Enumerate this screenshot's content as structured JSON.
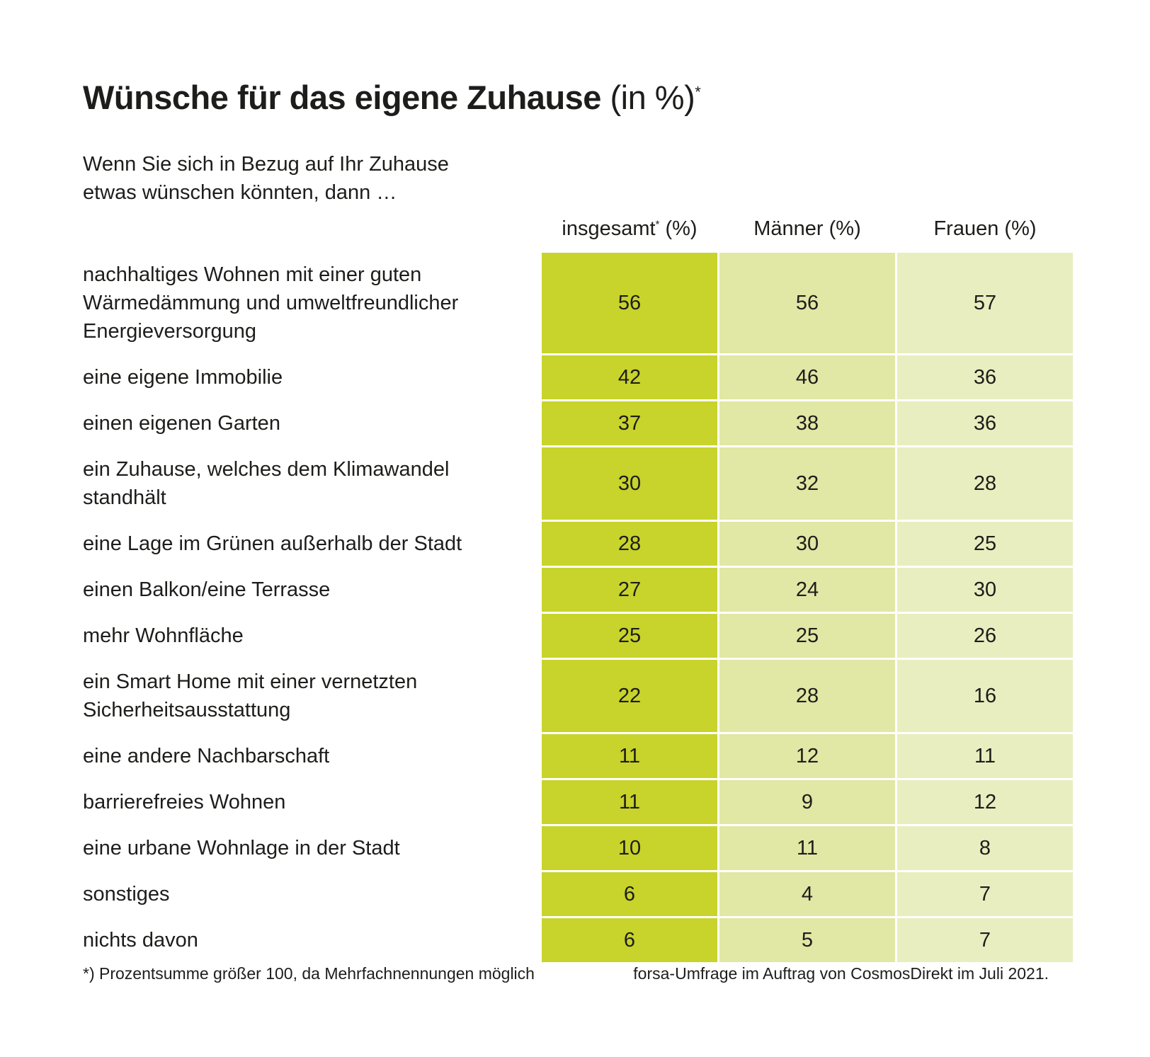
{
  "title": {
    "main": "Wünsche für das eigene Zuhause",
    "unit": "(in %)",
    "marker": "*"
  },
  "intro": {
    "line1": "Wenn Sie sich in Bezug auf Ihr Zuhause",
    "line2": "etwas wünschen könnten, dann …"
  },
  "chart_data": {
    "type": "table",
    "title": "Wünsche für das eigene Zuhause (in %)*",
    "columns": [
      {
        "label": "insgesamt",
        "marker": "*",
        "unit": "(%)"
      },
      {
        "label": "Männer",
        "marker": "",
        "unit": "(%)"
      },
      {
        "label": "Frauen",
        "marker": "",
        "unit": "(%)"
      }
    ],
    "rows": [
      {
        "label": [
          "nachhaltiges Wohnen mit einer guten",
          "Wärmedämmung und umweltfreundlicher",
          "Energieversorgung"
        ],
        "values": [
          56,
          56,
          57
        ]
      },
      {
        "label": [
          "eine eigene Immobilie"
        ],
        "values": [
          42,
          46,
          36
        ]
      },
      {
        "label": [
          "einen eigenen Garten"
        ],
        "values": [
          37,
          38,
          36
        ]
      },
      {
        "label": [
          "ein Zuhause, welches dem Klimawandel",
          "standhält"
        ],
        "values": [
          30,
          32,
          28
        ]
      },
      {
        "label": [
          "eine Lage im Grünen außerhalb der Stadt"
        ],
        "values": [
          28,
          30,
          25
        ]
      },
      {
        "label": [
          "einen Balkon/eine Terrasse"
        ],
        "values": [
          27,
          24,
          30
        ]
      },
      {
        "label": [
          "mehr Wohnfläche"
        ],
        "values": [
          25,
          25,
          26
        ]
      },
      {
        "label": [
          "ein Smart Home mit einer vernetzten",
          "Sicherheitsausstattung"
        ],
        "values": [
          22,
          28,
          16
        ]
      },
      {
        "label": [
          "eine andere Nachbarschaft"
        ],
        "values": [
          11,
          12,
          11
        ]
      },
      {
        "label": [
          "barrierefreies Wohnen"
        ],
        "values": [
          11,
          9,
          12
        ]
      },
      {
        "label": [
          "eine urbane Wohnlage in der Stadt"
        ],
        "values": [
          10,
          11,
          8
        ]
      },
      {
        "label": [
          "sonstiges"
        ],
        "values": [
          6,
          4,
          7
        ]
      },
      {
        "label": [
          "nichts davon"
        ],
        "values": [
          6,
          5,
          7
        ]
      }
    ]
  },
  "footer": {
    "note": "*) Prozentsumme größer 100, da Mehrfachnennungen möglich",
    "source": "forsa-Umfrage im Auftrag von CosmosDirekt im Juli 2021."
  },
  "colors": {
    "total": "#c8d32b",
    "men": "#e1e7a4",
    "women": "#e9eec0",
    "text": "#1d1d1b"
  }
}
